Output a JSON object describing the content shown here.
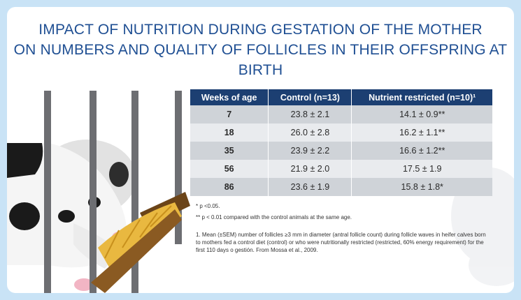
{
  "title": {
    "line1": "IMPACT OF NUTRITION DURING GESTATION OF THE MOTHER",
    "line2": "ON NUMBERS AND QUALITY OF FOLLICLES IN THEIR OFFSPRING AT BIRTH"
  },
  "table": {
    "headers": [
      "Weeks of age",
      "Control (n=13)",
      "Nutrient restricted (n=10)¹"
    ],
    "rows": [
      [
        "7",
        "23.8 ± 2.1",
        "14.1 ± 0.9**"
      ],
      [
        "18",
        "26.0 ± 2.8",
        "16.2 ± 1.1**"
      ],
      [
        "35",
        "23.9 ± 2.2",
        "16.6 ± 1.2**"
      ],
      [
        "56",
        "21.9 ± 2.0",
        "17.5 ± 1.9"
      ],
      [
        "86",
        "23.6 ± 1.9",
        "15.8 ± 1.8*"
      ]
    ]
  },
  "footnotes": {
    "single": "* p <0.05.",
    "double": "** p < 0.01 compared with the control animals at the same age.",
    "numbered": "1.  Mean (±SEM) number of follicles ≥3 mm in diameter (antral follicle count) during follicle waves in heifer calves born to mothers fed a control diet (control) or who were nutritionally restricted (restricted, 60% energy requirement) for the first 110 days o gestión. From Mossa et al., 2009."
  },
  "colors": {
    "background": "#c9e3f6",
    "title": "#1f4f93",
    "header": "#1c3f72",
    "row_dark": "#cfd3d8",
    "row_light": "#e9ebee"
  },
  "illustration": [
    "cow-illustration",
    "gate-bars",
    "hay-trough",
    "faint-cow-watermark"
  ]
}
